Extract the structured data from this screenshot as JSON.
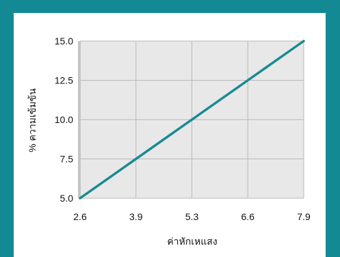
{
  "chart_data": {
    "type": "line",
    "xlabel": "ค่าหักเหแสง",
    "ylabel": "% ความเข้มข้น",
    "x_ticks": [
      "2.6",
      "3.9",
      "5.3",
      "6.6",
      "7.9"
    ],
    "y_ticks": [
      "5.0",
      "7.5",
      "10.0",
      "12.5",
      "15.0"
    ],
    "xlim": [
      2.6,
      7.9
    ],
    "ylim": [
      5.0,
      15.0
    ],
    "grid": true,
    "series": [
      {
        "x": [
          2.6,
          7.9
        ],
        "y": [
          5.0,
          15.0
        ]
      }
    ],
    "colors": {
      "background": "#138a93",
      "plot_area": "#e8e8e8",
      "grid": "#b8b8b8",
      "line": "#1a8a92"
    }
  }
}
